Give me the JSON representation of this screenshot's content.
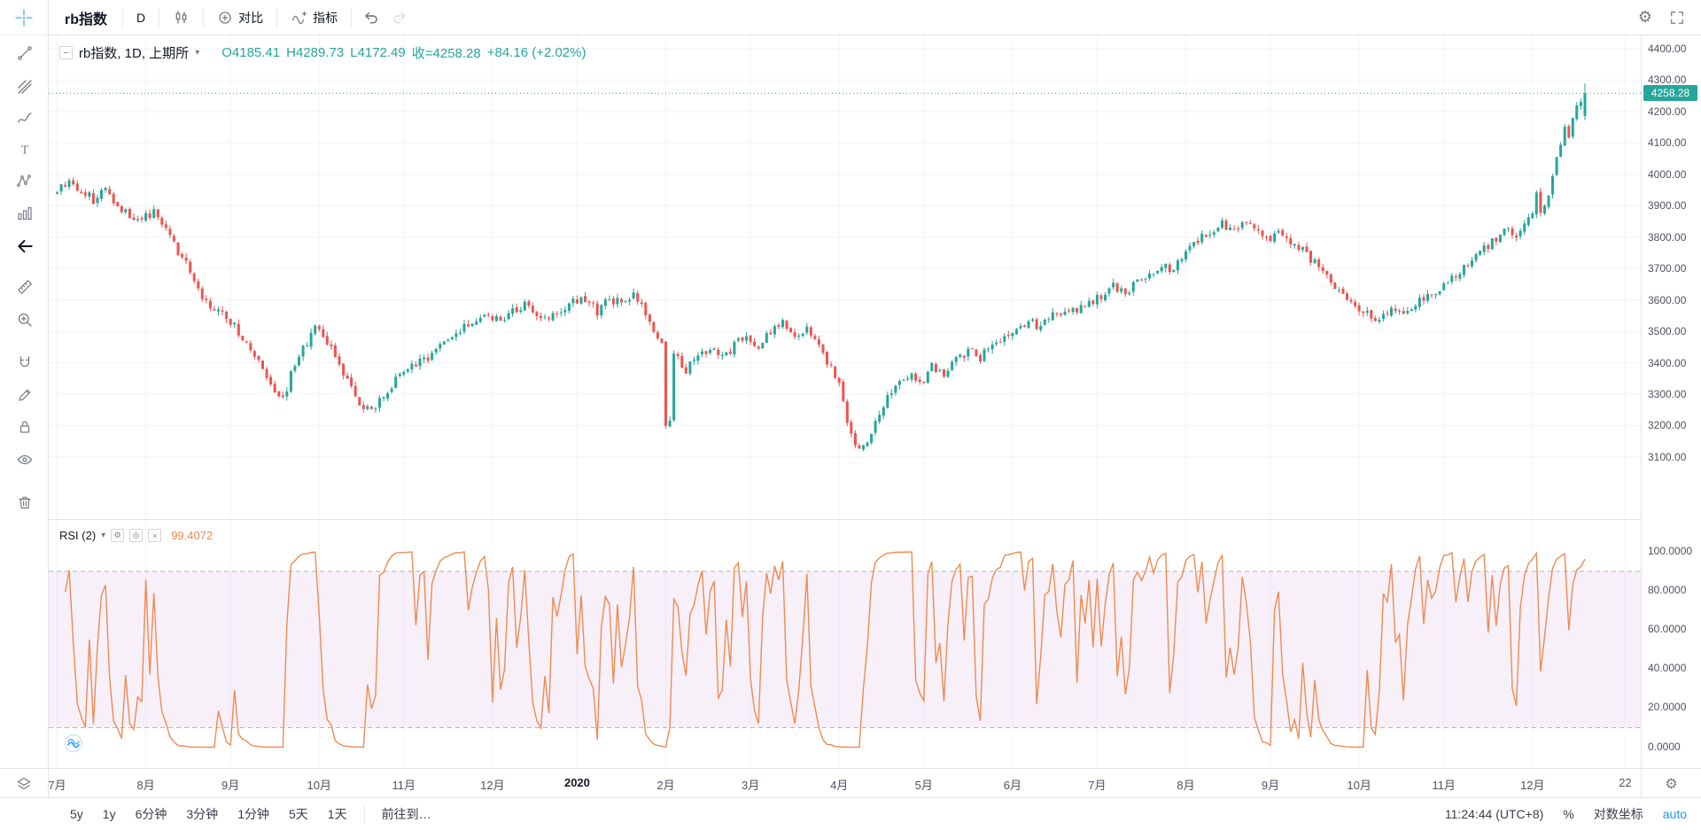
{
  "top_toolbar": {
    "symbol": "rb指数",
    "interval": "D",
    "compare": "对比",
    "indicators": "指标"
  },
  "icons": {
    "gear": "⚙",
    "caret": "▾",
    "collapse": "−",
    "rsi_gear": "⚙",
    "rsi_eye": "◎",
    "rsi_close": "×"
  },
  "colors": {
    "up": "#26a69a",
    "down": "#ef5350",
    "rsi_line": "#ef8a50",
    "accent_blue": "#2196f3",
    "band_fill": "rgba(186,104,200,0.10)",
    "grid": "#f0f3fa"
  },
  "bottom_bar": {
    "ranges": [
      "5y",
      "1y",
      "6分钟",
      "3分钟",
      "1分钟",
      "5天",
      "1天"
    ],
    "goto": "前往到…",
    "clock": "11:24:44 (UTC+8)",
    "percent": "%",
    "log_scale": "对数坐标",
    "auto": "auto"
  },
  "chart_data": [
    {
      "type": "candlestick",
      "legend": {
        "title": "rb指数, 1D, 上期所",
        "open": "O4185.41",
        "high": "H4289.73",
        "low": "L4172.49",
        "close": "收=4258.28",
        "change": "+84.16 (+2.02%)"
      },
      "last": {
        "open": 4185.41,
        "high": 4289.73,
        "low": 4172.49,
        "close": 4258.28,
        "change": 84.16,
        "change_pct": 2.02
      },
      "price_label": "4258.28",
      "ylim": [
        2902,
        4442
      ],
      "y_ticks": [
        "4400.00",
        "4300.00",
        "4200.00",
        "4100.00",
        "4000.00",
        "3900.00",
        "3800.00",
        "3700.00",
        "3600.00",
        "3500.00",
        "3400.00",
        "3300.00",
        "3200.00",
        "3100.00"
      ],
      "x_labels": [
        "7月",
        "8月",
        "9月",
        "10月",
        "11月",
        "12月",
        "2020",
        "2月",
        "3月",
        "4月",
        "5月",
        "6月",
        "7月",
        "8月",
        "9月",
        "10月",
        "11月",
        "12月",
        "22"
      ],
      "x_label_days": [
        0,
        22,
        43,
        65,
        86,
        108,
        129,
        151,
        172,
        194,
        215,
        237,
        258,
        280,
        301,
        323,
        344,
        366,
        389
      ],
      "n_candles": 380,
      "close_keypoints": [
        [
          0,
          3950
        ],
        [
          3,
          3985
        ],
        [
          6,
          3945
        ],
        [
          9,
          3920
        ],
        [
          12,
          3955
        ],
        [
          15,
          3905
        ],
        [
          18,
          3870
        ],
        [
          21,
          3862
        ],
        [
          24,
          3875
        ],
        [
          27,
          3830
        ],
        [
          30,
          3755
        ],
        [
          33,
          3690
        ],
        [
          36,
          3610
        ],
        [
          39,
          3565
        ],
        [
          42,
          3548
        ],
        [
          45,
          3500
        ],
        [
          48,
          3445
        ],
        [
          51,
          3370
        ],
        [
          54,
          3300
        ],
        [
          56,
          3285
        ],
        [
          58,
          3360
        ],
        [
          61,
          3450
        ],
        [
          64,
          3505
        ],
        [
          66,
          3478
        ],
        [
          69,
          3420
        ],
        [
          72,
          3340
        ],
        [
          75,
          3262
        ],
        [
          78,
          3245
        ],
        [
          81,
          3300
        ],
        [
          84,
          3345
        ],
        [
          87,
          3385
        ],
        [
          90,
          3400
        ],
        [
          94,
          3440
        ],
        [
          98,
          3480
        ],
        [
          102,
          3520
        ],
        [
          106,
          3555
        ],
        [
          110,
          3545
        ],
        [
          113,
          3560
        ],
        [
          116,
          3585
        ],
        [
          120,
          3540
        ],
        [
          124,
          3565
        ],
        [
          127,
          3590
        ],
        [
          131,
          3600
        ],
        [
          134,
          3565
        ],
        [
          137,
          3605
        ],
        [
          140,
          3585
        ],
        [
          143,
          3610
        ],
        [
          146,
          3560
        ],
        [
          148,
          3500
        ],
        [
          150,
          3455
        ],
        [
          151,
          3195
        ],
        [
          152,
          3210
        ],
        [
          153,
          3420
        ],
        [
          156,
          3380
        ],
        [
          159,
          3420
        ],
        [
          162,
          3445
        ],
        [
          165,
          3415
        ],
        [
          168,
          3455
        ],
        [
          171,
          3480
        ],
        [
          174,
          3430
        ],
        [
          177,
          3505
        ],
        [
          180,
          3525
        ],
        [
          183,
          3470
        ],
        [
          186,
          3515
        ],
        [
          189,
          3460
        ],
        [
          192,
          3380
        ],
        [
          194,
          3330
        ],
        [
          196,
          3220
        ],
        [
          198,
          3135
        ],
        [
          200,
          3125
        ],
        [
          202,
          3180
        ],
        [
          205,
          3260
        ],
        [
          208,
          3330
        ],
        [
          211,
          3360
        ],
        [
          214,
          3335
        ],
        [
          217,
          3385
        ],
        [
          220,
          3360
        ],
        [
          223,
          3410
        ],
        [
          226,
          3440
        ],
        [
          229,
          3415
        ],
        [
          232,
          3460
        ],
        [
          235,
          3480
        ],
        [
          238,
          3505
        ],
        [
          241,
          3530
        ],
        [
          244,
          3510
        ],
        [
          247,
          3550
        ],
        [
          250,
          3575
        ],
        [
          253,
          3560
        ],
        [
          256,
          3590
        ],
        [
          259,
          3610
        ],
        [
          262,
          3640
        ],
        [
          265,
          3620
        ],
        [
          268,
          3665
        ],
        [
          271,
          3690
        ],
        [
          274,
          3710
        ],
        [
          277,
          3695
        ],
        [
          280,
          3760
        ],
        [
          283,
          3790
        ],
        [
          286,
          3820
        ],
        [
          289,
          3840
        ],
        [
          292,
          3810
        ],
        [
          295,
          3845
        ],
        [
          298,
          3820
        ],
        [
          301,
          3790
        ],
        [
          303,
          3825
        ],
        [
          306,
          3790
        ],
        [
          310,
          3750
        ],
        [
          313,
          3700
        ],
        [
          316,
          3660
        ],
        [
          319,
          3620
        ],
        [
          322,
          3585
        ],
        [
          325,
          3560
        ],
        [
          328,
          3540
        ],
        [
          331,
          3570
        ],
        [
          334,
          3555
        ],
        [
          337,
          3585
        ],
        [
          340,
          3610
        ],
        [
          343,
          3640
        ],
        [
          346,
          3665
        ],
        [
          349,
          3700
        ],
        [
          352,
          3740
        ],
        [
          355,
          3770
        ],
        [
          358,
          3805
        ],
        [
          360,
          3830
        ],
        [
          362,
          3810
        ],
        [
          364,
          3845
        ],
        [
          366,
          3880
        ],
        [
          367,
          3940
        ],
        [
          368,
          3875
        ],
        [
          370,
          3930
        ],
        [
          371,
          3990
        ],
        [
          372,
          4050
        ],
        [
          373,
          4090
        ],
        [
          374,
          4150
        ],
        [
          375,
          4120
        ],
        [
          376,
          4175
        ],
        [
          377,
          4215
        ],
        [
          378,
          4235
        ],
        [
          379,
          4258.28
        ]
      ]
    },
    {
      "type": "line",
      "name": "RSI",
      "period": 2,
      "label": "RSI (2)",
      "value_label": "99.4072",
      "last_value": 99.4072,
      "ylim": [
        0,
        100
      ],
      "y_ticks": [
        "100.0000",
        "80.0000",
        "60.0000",
        "40.0000",
        "20.0000",
        "0.0000"
      ],
      "bands": [
        90,
        10
      ]
    }
  ]
}
